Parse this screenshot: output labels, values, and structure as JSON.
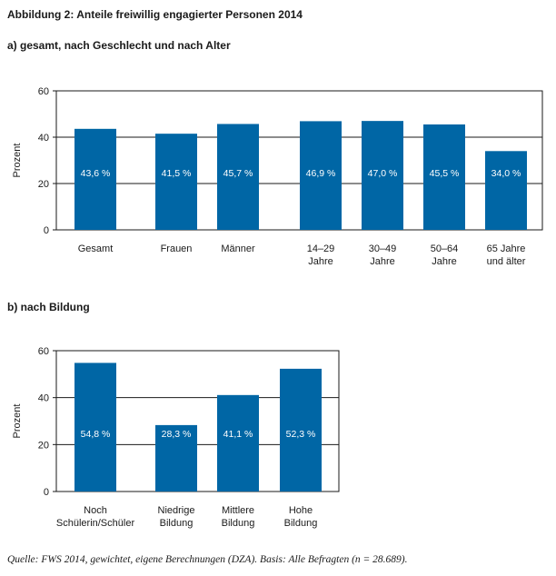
{
  "title": "Abbildung 2: Anteile freiwillig engagierter Personen 2014",
  "colors": {
    "bar": "#0066a5",
    "text": "#1a1a1a",
    "axis": "#1a1a1a"
  },
  "chart_data": [
    {
      "type": "bar",
      "title": "a) gesamt, nach Geschlecht und nach Alter",
      "ylabel": "Prozent",
      "ylim": [
        0,
        60
      ],
      "yticks": [
        0,
        20,
        40,
        60
      ],
      "grid": true,
      "categories": [
        [
          "Gesamt"
        ],
        [
          "Frauen"
        ],
        [
          "Männer"
        ],
        [
          "14–29",
          "Jahre"
        ],
        [
          "30–49",
          "Jahre"
        ],
        [
          "50–64",
          "Jahre"
        ],
        [
          "65 Jahre",
          "und älter"
        ]
      ],
      "values": [
        43.6,
        41.5,
        45.7,
        46.9,
        47.0,
        45.5,
        34.0
      ],
      "data_labels": [
        "43,6 %",
        "41,5 %",
        "45,7 %",
        "46,9 %",
        "47,0 %",
        "45,5 %",
        "34,0 %"
      ]
    },
    {
      "type": "bar",
      "title": "b) nach Bildung",
      "ylabel": "Prozent",
      "ylim": [
        0,
        60
      ],
      "yticks": [
        0,
        20,
        40,
        60
      ],
      "grid": true,
      "categories": [
        [
          "Noch",
          "Schülerin/Schüler"
        ],
        [
          "Niedrige",
          "Bildung"
        ],
        [
          "Mittlere",
          "Bildung"
        ],
        [
          "Hohe",
          "Bildung"
        ]
      ],
      "values": [
        54.8,
        28.3,
        41.1,
        52.3
      ],
      "data_labels": [
        "54,8 %",
        "28,3 %",
        "41,1 %",
        "52,3 %"
      ]
    }
  ],
  "source": "Quelle: FWS 2014, gewichtet, eigene Berechnungen (DZA). Basis: Alle Befragten (n = 28.689)."
}
